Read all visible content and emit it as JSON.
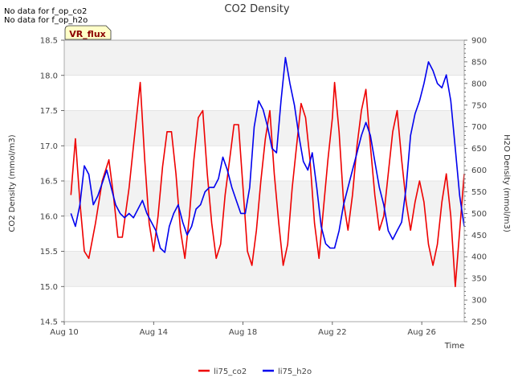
{
  "chart_data": {
    "type": "line",
    "title": "CO2 Density",
    "xlabel": "Time",
    "ylabel_left": "CO2 Density (mmol/m3)",
    "ylabel_right": "H2O Density (mmol/m3)",
    "notes": [
      "No data for f_op_co2",
      "No data for f_op_h2o"
    ],
    "badge": "VR_flux",
    "x_ticks": [
      {
        "day": 10,
        "label": "Aug 10"
      },
      {
        "day": 14,
        "label": "Aug 14"
      },
      {
        "day": 18,
        "label": "Aug 18"
      },
      {
        "day": 22,
        "label": "Aug 22"
      },
      {
        "day": 26,
        "label": "Aug 26"
      }
    ],
    "xlim": [
      10,
      27.9
    ],
    "ylim_left": [
      14.5,
      18.5
    ],
    "ylim_right": [
      250,
      900
    ],
    "y_left_ticks": [
      14.5,
      15.0,
      15.5,
      16.0,
      16.5,
      17.0,
      17.5,
      18.0,
      18.5
    ],
    "y_right_ticks": [
      250,
      300,
      350,
      400,
      450,
      500,
      550,
      600,
      650,
      700,
      750,
      800,
      850,
      900
    ],
    "bands": true,
    "legend_position": "bottom-center",
    "series": [
      {
        "name": "li75_co2",
        "axis": "left",
        "color": "#ee0000",
        "points": [
          [
            10.3,
            16.3
          ],
          [
            10.5,
            17.1
          ],
          [
            10.7,
            16.2
          ],
          [
            10.9,
            15.5
          ],
          [
            11.1,
            15.4
          ],
          [
            11.4,
            15.9
          ],
          [
            11.7,
            16.5
          ],
          [
            12.0,
            16.8
          ],
          [
            12.2,
            16.3
          ],
          [
            12.4,
            15.7
          ],
          [
            12.6,
            15.7
          ],
          [
            12.9,
            16.4
          ],
          [
            13.1,
            17.0
          ],
          [
            13.3,
            17.6
          ],
          [
            13.4,
            17.9
          ],
          [
            13.6,
            16.8
          ],
          [
            13.8,
            15.9
          ],
          [
            14.0,
            15.5
          ],
          [
            14.2,
            16.0
          ],
          [
            14.4,
            16.7
          ],
          [
            14.6,
            17.2
          ],
          [
            14.8,
            17.2
          ],
          [
            15.0,
            16.6
          ],
          [
            15.2,
            15.8
          ],
          [
            15.4,
            15.4
          ],
          [
            15.6,
            16.0
          ],
          [
            15.8,
            16.8
          ],
          [
            16.0,
            17.4
          ],
          [
            16.2,
            17.5
          ],
          [
            16.4,
            16.6
          ],
          [
            16.6,
            15.9
          ],
          [
            16.8,
            15.4
          ],
          [
            17.0,
            15.6
          ],
          [
            17.2,
            16.3
          ],
          [
            17.4,
            16.8
          ],
          [
            17.6,
            17.3
          ],
          [
            17.8,
            17.3
          ],
          [
            18.0,
            16.4
          ],
          [
            18.2,
            15.5
          ],
          [
            18.4,
            15.3
          ],
          [
            18.6,
            15.8
          ],
          [
            18.8,
            16.5
          ],
          [
            19.0,
            17.1
          ],
          [
            19.2,
            17.5
          ],
          [
            19.4,
            16.6
          ],
          [
            19.6,
            15.9
          ],
          [
            19.8,
            15.3
          ],
          [
            20.0,
            15.6
          ],
          [
            20.2,
            16.4
          ],
          [
            20.4,
            17.0
          ],
          [
            20.6,
            17.6
          ],
          [
            20.8,
            17.4
          ],
          [
            21.0,
            16.8
          ],
          [
            21.2,
            15.9
          ],
          [
            21.4,
            15.4
          ],
          [
            21.6,
            16.1
          ],
          [
            21.8,
            16.8
          ],
          [
            22.0,
            17.4
          ],
          [
            22.1,
            17.9
          ],
          [
            22.3,
            17.2
          ],
          [
            22.5,
            16.2
          ],
          [
            22.7,
            15.8
          ],
          [
            22.9,
            16.3
          ],
          [
            23.1,
            17.0
          ],
          [
            23.3,
            17.5
          ],
          [
            23.5,
            17.8
          ],
          [
            23.7,
            17.0
          ],
          [
            23.9,
            16.3
          ],
          [
            24.1,
            15.8
          ],
          [
            24.3,
            16.0
          ],
          [
            24.5,
            16.6
          ],
          [
            24.7,
            17.2
          ],
          [
            24.9,
            17.5
          ],
          [
            25.1,
            16.8
          ],
          [
            25.3,
            16.2
          ],
          [
            25.5,
            15.8
          ],
          [
            25.7,
            16.2
          ],
          [
            25.9,
            16.5
          ],
          [
            26.1,
            16.2
          ],
          [
            26.3,
            15.6
          ],
          [
            26.5,
            15.3
          ],
          [
            26.7,
            15.6
          ],
          [
            26.9,
            16.2
          ],
          [
            27.1,
            16.6
          ],
          [
            27.3,
            16.0
          ],
          [
            27.5,
            15.0
          ],
          [
            27.7,
            15.8
          ],
          [
            27.9,
            16.6
          ]
        ]
      },
      {
        "name": "li75_h2o",
        "axis": "right",
        "color": "#0000ee",
        "points": [
          [
            10.3,
            500
          ],
          [
            10.5,
            470
          ],
          [
            10.7,
            520
          ],
          [
            10.9,
            610
          ],
          [
            11.1,
            590
          ],
          [
            11.3,
            520
          ],
          [
            11.5,
            540
          ],
          [
            11.7,
            570
          ],
          [
            11.9,
            600
          ],
          [
            12.1,
            560
          ],
          [
            12.3,
            520
          ],
          [
            12.5,
            500
          ],
          [
            12.7,
            490
          ],
          [
            12.9,
            500
          ],
          [
            13.1,
            490
          ],
          [
            13.3,
            510
          ],
          [
            13.5,
            530
          ],
          [
            13.7,
            500
          ],
          [
            13.9,
            480
          ],
          [
            14.1,
            460
          ],
          [
            14.3,
            420
          ],
          [
            14.5,
            410
          ],
          [
            14.7,
            470
          ],
          [
            14.9,
            500
          ],
          [
            15.1,
            520
          ],
          [
            15.3,
            480
          ],
          [
            15.5,
            450
          ],
          [
            15.7,
            470
          ],
          [
            15.9,
            510
          ],
          [
            16.1,
            520
          ],
          [
            16.3,
            550
          ],
          [
            16.5,
            560
          ],
          [
            16.7,
            560
          ],
          [
            16.9,
            580
          ],
          [
            17.1,
            630
          ],
          [
            17.3,
            600
          ],
          [
            17.5,
            560
          ],
          [
            17.7,
            530
          ],
          [
            17.9,
            500
          ],
          [
            18.1,
            500
          ],
          [
            18.3,
            560
          ],
          [
            18.5,
            700
          ],
          [
            18.7,
            760
          ],
          [
            18.9,
            740
          ],
          [
            19.1,
            700
          ],
          [
            19.3,
            650
          ],
          [
            19.5,
            640
          ],
          [
            19.7,
            760
          ],
          [
            19.9,
            860
          ],
          [
            20.1,
            800
          ],
          [
            20.3,
            750
          ],
          [
            20.5,
            680
          ],
          [
            20.7,
            620
          ],
          [
            20.9,
            600
          ],
          [
            21.1,
            640
          ],
          [
            21.3,
            560
          ],
          [
            21.5,
            470
          ],
          [
            21.7,
            430
          ],
          [
            21.9,
            420
          ],
          [
            22.1,
            420
          ],
          [
            22.3,
            460
          ],
          [
            22.5,
            520
          ],
          [
            22.7,
            560
          ],
          [
            22.9,
            600
          ],
          [
            23.1,
            640
          ],
          [
            23.3,
            680
          ],
          [
            23.5,
            710
          ],
          [
            23.7,
            680
          ],
          [
            23.9,
            620
          ],
          [
            24.1,
            560
          ],
          [
            24.3,
            520
          ],
          [
            24.5,
            460
          ],
          [
            24.7,
            440
          ],
          [
            24.9,
            460
          ],
          [
            25.1,
            480
          ],
          [
            25.3,
            560
          ],
          [
            25.5,
            680
          ],
          [
            25.7,
            730
          ],
          [
            25.9,
            760
          ],
          [
            26.1,
            800
          ],
          [
            26.3,
            850
          ],
          [
            26.5,
            830
          ],
          [
            26.7,
            800
          ],
          [
            26.9,
            790
          ],
          [
            27.1,
            820
          ],
          [
            27.3,
            760
          ],
          [
            27.5,
            650
          ],
          [
            27.7,
            540
          ],
          [
            27.9,
            470
          ]
        ]
      }
    ]
  }
}
